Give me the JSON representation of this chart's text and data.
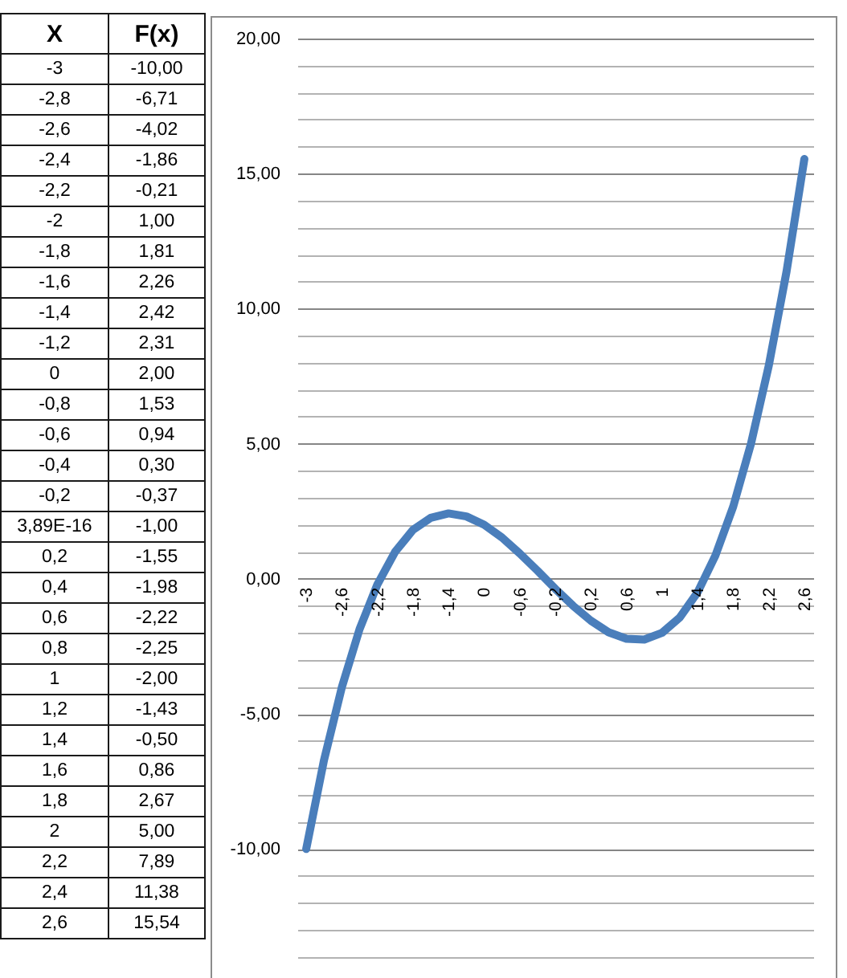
{
  "chart_data": [
    {
      "type": "other",
      "annotations": [
        "X",
        "F(x)",
        "-3",
        "-10,00",
        "-2,8",
        "-6,71",
        "-2,6",
        "-4,02",
        "-2,4",
        "-1,86",
        "-2,2",
        "-0,21",
        "-2",
        "1,00",
        "-1,8",
        "1,81",
        "-1,6",
        "2,26",
        "-1,4",
        "2,42",
        "-1,2",
        "2,31",
        "0",
        "2,00",
        "-0,8",
        "1,53",
        "-0,6",
        "0,94",
        "-0,4",
        "0,30",
        "-0,2",
        "-0,37",
        "3,89E-16",
        "-1,00",
        "0,2",
        "-1,55",
        "0,4",
        "-1,98",
        "0,6",
        "-2,22",
        "0,8",
        "-2,25",
        "1",
        "-2,00",
        "1,2",
        "-1,43",
        "1,4",
        "-0,50",
        "1,6",
        "0,86",
        "1,8",
        "2,67",
        "2",
        "5,00",
        "2,2",
        "7,89",
        "2,4",
        "11,38",
        "2,6",
        "15,54"
      ]
    },
    {
      "type": "line",
      "categories": [
        "-3",
        null,
        "-2,6",
        null,
        "-2,2",
        null,
        "-1,8",
        null,
        "-1,4",
        null,
        "0",
        null,
        "-0,6",
        null,
        "-0,2",
        null,
        "0,2",
        null,
        "0,6",
        null,
        "1",
        null,
        "1,4",
        null,
        "1,8",
        null,
        "2,2",
        null,
        "2,6"
      ],
      "values": [
        -10,
        -6.71,
        -4.02,
        -1.86,
        -0.21,
        1,
        1.81,
        2.26,
        2.42,
        2.31,
        2,
        1.53,
        0.94,
        0.3,
        -0.37,
        -1,
        -1.55,
        -1.98,
        -2.22,
        -2.25,
        -2,
        -1.43,
        -0.5,
        0.86,
        2.67,
        5,
        7.89,
        11.38,
        15.54
      ],
      "color": "#4a7ebb",
      "ylim": [
        -14.6,
        20
      ],
      "yticks": [
        {
          "value": -14,
          "label": null
        },
        {
          "value": -13,
          "label": null
        },
        {
          "value": -12,
          "label": null
        },
        {
          "value": -11,
          "label": null
        },
        {
          "value": -10,
          "label": "-10,00"
        },
        {
          "value": -9,
          "label": null
        },
        {
          "value": -8,
          "label": null
        },
        {
          "value": -7,
          "label": null
        },
        {
          "value": -6,
          "label": null
        },
        {
          "value": -5,
          "label": "-5,00"
        },
        {
          "value": -4,
          "label": null
        },
        {
          "value": -3,
          "label": null
        },
        {
          "value": -2,
          "label": null
        },
        {
          "value": -1,
          "label": null
        },
        {
          "value": 0,
          "label": "0,00"
        },
        {
          "value": 1,
          "label": null
        },
        {
          "value": 2,
          "label": null
        },
        {
          "value": 3,
          "label": null
        },
        {
          "value": 4,
          "label": null
        },
        {
          "value": 5,
          "label": "5,00"
        },
        {
          "value": 6,
          "label": null
        },
        {
          "value": 7,
          "label": null
        },
        {
          "value": 8,
          "label": null
        },
        {
          "value": 9,
          "label": null
        },
        {
          "value": 10,
          "label": "10,00"
        },
        {
          "value": 11,
          "label": null
        },
        {
          "value": 12,
          "label": null
        },
        {
          "value": 13,
          "label": null
        },
        {
          "value": 14,
          "label": null
        },
        {
          "value": 15,
          "label": "15,00"
        },
        {
          "value": 16,
          "label": null
        },
        {
          "value": 17,
          "label": null
        },
        {
          "value": 18,
          "label": null
        },
        {
          "value": 19,
          "label": null
        },
        {
          "value": 20,
          "label": "20,00"
        }
      ],
      "grid": "y"
    }
  ]
}
